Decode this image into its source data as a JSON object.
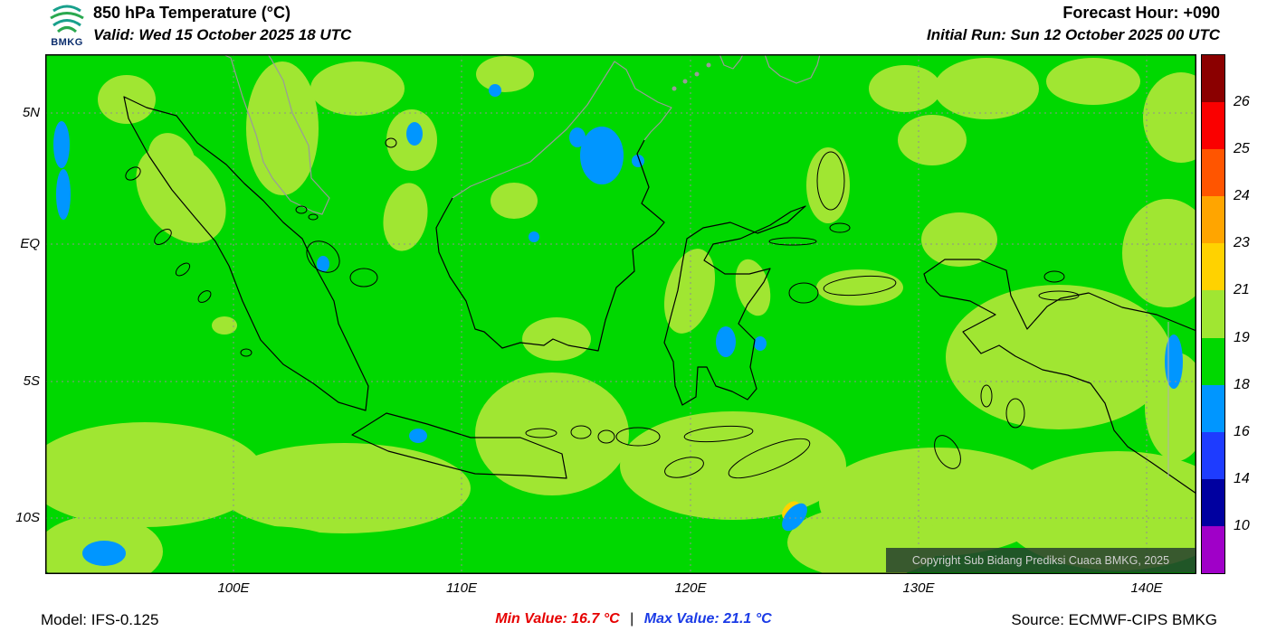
{
  "header": {
    "logo_text": "BMKG",
    "title": "850 hPa Temperature (°C)",
    "valid_line": "Valid: Wed 15 October 2025 18 UTC",
    "forecast_hour": "Forecast Hour: +090",
    "initial_run": "Initial Run: Sun 12 October 2025 00 UTC"
  },
  "map": {
    "y_axis_labels": [
      "5N",
      "EQ",
      "5S",
      "10S"
    ],
    "x_axis_labels": [
      "100E",
      "110E",
      "120E",
      "130E",
      "140E"
    ],
    "copyright": "Copyright Sub Bidang Prediksi Cuaca BMKG, 2025"
  },
  "colorbar": {
    "unit": "°C",
    "segments": [
      {
        "color": "#8b0000",
        "label": "26"
      },
      {
        "color": "#fa0000",
        "label": "25"
      },
      {
        "color": "#ff5500",
        "label": "24"
      },
      {
        "color": "#ffa500",
        "label": "23"
      },
      {
        "color": "#ffd200",
        "label": "21"
      },
      {
        "color": "#a0e632",
        "label": "19"
      },
      {
        "color": "#00d800",
        "label": "18"
      },
      {
        "color": "#0096ff",
        "label": "16"
      },
      {
        "color": "#1e3cff",
        "label": "14"
      },
      {
        "color": "#0000a0",
        "label": "10"
      },
      {
        "color": "#a000c8",
        "label": ""
      }
    ]
  },
  "field_colors": {
    "background_green": "#00d800",
    "patch_yellow_green": "#a0e632",
    "spot_blue": "#0096ff",
    "spot_yellow": "#ffd200"
  },
  "footer": {
    "model": "Model: IFS-0.125",
    "min_value": "Min Value: 16.7 °C",
    "separator": "|",
    "max_value": "Max Value: 21.1 °C",
    "source": "Source: ECMWF-CIPS BMKG",
    "min_color": "#e60000",
    "max_color": "#1a3ae6"
  }
}
